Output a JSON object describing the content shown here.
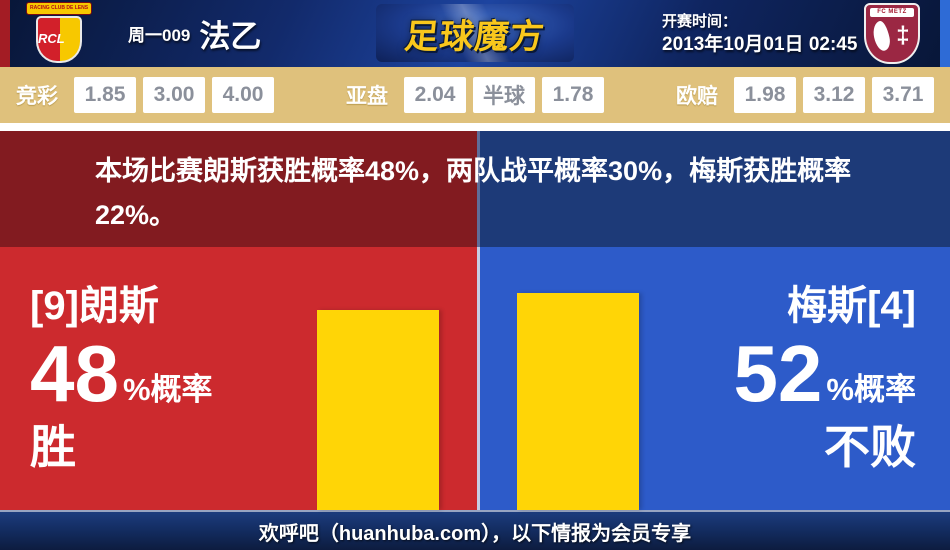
{
  "header": {
    "home_badge": {
      "banner": "RACING CLUB DE LENS",
      "initials": "RCL"
    },
    "match_number": "周一009",
    "league": "法乙",
    "site_logo": "足球魔方",
    "kickoff_label": "开赛时间：",
    "kickoff_time": "2013年10月01日 02:45",
    "away_badge": {
      "banner": "FC METZ",
      "cross": "‡"
    }
  },
  "odds": {
    "groups": [
      {
        "label": "竞彩",
        "values": [
          "1.85",
          "3.00",
          "4.00"
        ]
      },
      {
        "label": "亚盘",
        "values": [
          "2.04",
          "半球",
          "1.78"
        ]
      },
      {
        "label": "欧赔",
        "values": [
          "1.98",
          "3.12",
          "3.71"
        ]
      }
    ]
  },
  "analysis": {
    "summary": "本场比赛朗斯获胜概率48%，两队战平概率30%，梅斯获胜概率22%。"
  },
  "home": {
    "name": "[9]朗斯",
    "percent": "48",
    "suffix": "%概率",
    "outcome": "胜"
  },
  "away": {
    "name": "梅斯[4]",
    "percent": "52",
    "suffix": "%概率",
    "outcome": "不败"
  },
  "footer": {
    "text": "欢呼吧（huanhuba.com），以下情报为会员专享"
  },
  "chart_data": {
    "type": "bar",
    "categories": [
      "[9]朗斯 胜",
      "梅斯[4] 不败"
    ],
    "values": [
      48,
      52
    ],
    "unit": "%",
    "bar_color": "#ffd506",
    "title": "本场比赛朗斯获胜概率48%，两队战平概率30%，梅斯获胜概率22%。",
    "probabilities": {
      "home_win": 48,
      "draw": 30,
      "away_win": 22
    },
    "ylim": [
      0,
      63
    ],
    "legend": "off",
    "grid": "off"
  },
  "colors": {
    "home_bright": "#cc2a2e",
    "home_dark": "#821b20",
    "away_bright": "#2d5bc9",
    "away_dark": "#1d3a78",
    "bar_yellow": "#ffd506",
    "odds_bg": "#dfc17c",
    "header_navy": "#12295e",
    "logo_gold": "#f9c71c"
  }
}
